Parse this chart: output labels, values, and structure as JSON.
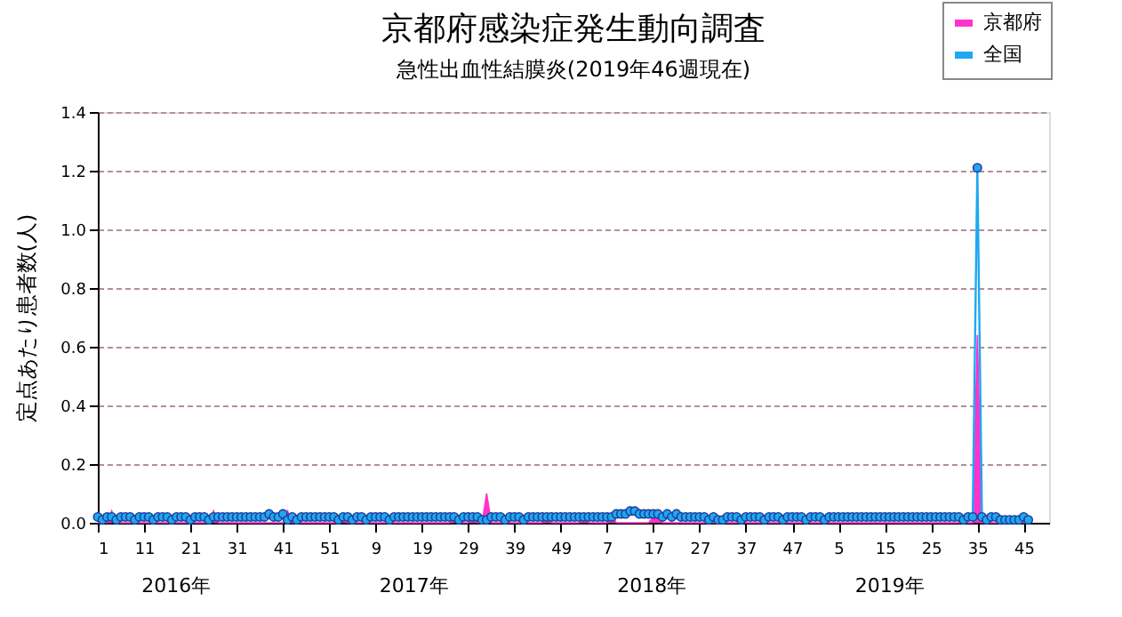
{
  "chart_data": {
    "type": "line",
    "title": "京都府感染症発生動向調査",
    "subtitle": "急性出血性結膜炎(2019年46週現在)",
    "ylabel": "定点あたり患者数(人)",
    "annotations": [
      "2016年",
      "2017年",
      "2018年",
      "2019年"
    ],
    "categories": [
      "1",
      null,
      null,
      null,
      null,
      null,
      null,
      null,
      null,
      null,
      "11",
      null,
      null,
      null,
      null,
      null,
      null,
      null,
      null,
      null,
      "21",
      null,
      null,
      null,
      null,
      null,
      null,
      null,
      null,
      null,
      "31",
      null,
      null,
      null,
      null,
      null,
      null,
      null,
      null,
      null,
      "41",
      null,
      null,
      null,
      null,
      null,
      null,
      null,
      null,
      null,
      "51",
      null,
      null,
      null,
      null,
      null,
      null,
      null,
      null,
      null,
      "9",
      null,
      null,
      null,
      null,
      null,
      null,
      null,
      null,
      null,
      "19",
      null,
      null,
      null,
      null,
      null,
      null,
      null,
      null,
      null,
      "29",
      null,
      null,
      null,
      null,
      null,
      null,
      null,
      null,
      null,
      "39",
      null,
      null,
      null,
      null,
      null,
      null,
      null,
      null,
      null,
      "49",
      null,
      null,
      null,
      null,
      null,
      null,
      null,
      null,
      null,
      "7",
      null,
      null,
      null,
      null,
      null,
      null,
      null,
      null,
      null,
      "17",
      null,
      null,
      null,
      null,
      null,
      null,
      null,
      null,
      null,
      "27",
      null,
      null,
      null,
      null,
      null,
      null,
      null,
      null,
      null,
      "37",
      null,
      null,
      null,
      null,
      null,
      null,
      null,
      null,
      null,
      "47",
      null,
      null,
      null,
      null,
      null,
      null,
      null,
      null,
      null,
      "5",
      null,
      null,
      null,
      null,
      null,
      null,
      null,
      null,
      null,
      "15",
      null,
      null,
      null,
      null,
      null,
      null,
      null,
      null,
      null,
      "25",
      null,
      null,
      null,
      null,
      null,
      null,
      null,
      null,
      null,
      "35",
      null,
      null,
      null,
      null,
      null,
      null,
      null,
      null,
      null,
      "45",
      null
    ],
    "series": [
      {
        "name": "京都府",
        "type": "area",
        "color": "#ff33cc",
        "values": [
          0,
          0,
          0,
          0.04,
          0,
          0,
          0,
          0,
          0,
          0,
          0,
          0,
          0,
          0,
          0,
          0,
          0,
          0,
          0,
          0,
          0,
          0,
          0,
          0,
          0,
          0.04,
          0,
          0,
          0,
          0,
          0,
          0,
          0,
          0,
          0,
          0,
          0,
          0,
          0,
          0,
          0,
          0.04,
          0,
          0,
          0,
          0,
          0,
          0,
          0,
          0,
          0,
          0,
          0,
          0.03,
          0,
          0,
          0,
          0,
          0,
          0,
          0,
          0,
          0,
          0,
          0,
          0,
          0,
          0,
          0,
          0,
          0,
          0,
          0,
          0,
          0,
          0,
          0,
          0.03,
          0,
          0,
          0,
          0.03,
          0,
          0,
          0.1,
          0,
          0,
          0,
          0,
          0,
          0,
          0,
          0,
          0,
          0,
          0,
          0,
          0.03,
          0,
          0,
          0,
          0,
          0,
          0,
          0,
          0.03,
          0,
          0,
          0,
          0,
          0,
          0.03,
          0,
          0,
          0,
          0,
          0,
          0,
          0,
          0,
          0.02,
          0.02,
          0,
          0,
          0,
          0,
          0,
          0,
          0,
          0,
          0,
          0,
          0,
          0,
          0,
          0,
          0,
          0,
          0,
          0,
          0,
          0,
          0,
          0,
          0,
          0,
          0,
          0,
          0,
          0,
          0,
          0,
          0,
          0,
          0,
          0,
          0,
          0,
          0,
          0,
          0,
          0,
          0,
          0,
          0,
          0,
          0,
          0,
          0,
          0,
          0,
          0,
          0,
          0,
          0,
          0,
          0,
          0,
          0,
          0,
          0,
          0,
          0,
          0,
          0,
          0,
          0,
          0,
          0,
          0,
          0.64,
          0,
          0,
          0,
          0,
          0,
          0,
          0,
          0,
          0,
          0,
          0
        ]
      },
      {
        "name": "全国",
        "marker": "circle",
        "color": "#1fa8f0",
        "values": [
          0.02,
          0.01,
          0.02,
          0.02,
          0.01,
          0.02,
          0.02,
          0.02,
          0.01,
          0.02,
          0.02,
          0.02,
          0.01,
          0.02,
          0.02,
          0.02,
          0.01,
          0.02,
          0.02,
          0.02,
          0.01,
          0.02,
          0.02,
          0.02,
          0.01,
          0.02,
          0.02,
          0.02,
          0.02,
          0.02,
          0.02,
          0.02,
          0.02,
          0.02,
          0.02,
          0.02,
          0.02,
          0.03,
          0.02,
          0.02,
          0.03,
          0.01,
          0.02,
          0.01,
          0.02,
          0.02,
          0.02,
          0.02,
          0.02,
          0.02,
          0.02,
          0.02,
          0.01,
          0.02,
          0.02,
          0.01,
          0.02,
          0.02,
          0.01,
          0.02,
          0.02,
          0.02,
          0.02,
          0.01,
          0.02,
          0.02,
          0.02,
          0.02,
          0.02,
          0.02,
          0.02,
          0.02,
          0.02,
          0.02,
          0.02,
          0.02,
          0.02,
          0.02,
          0.01,
          0.02,
          0.02,
          0.02,
          0.02,
          0.01,
          0.01,
          0.02,
          0.02,
          0.02,
          0.01,
          0.02,
          0.02,
          0.02,
          0.01,
          0.02,
          0.02,
          0.02,
          0.02,
          0.02,
          0.02,
          0.02,
          0.02,
          0.02,
          0.02,
          0.02,
          0.02,
          0.02,
          0.02,
          0.02,
          0.02,
          0.02,
          0.02,
          0.02,
          0.03,
          0.03,
          0.03,
          0.04,
          0.04,
          0.03,
          0.03,
          0.03,
          0.03,
          0.03,
          0.02,
          0.03,
          0.02,
          0.03,
          0.02,
          0.02,
          0.02,
          0.02,
          0.02,
          0.02,
          0.01,
          0.02,
          0.01,
          0.01,
          0.02,
          0.02,
          0.02,
          0.01,
          0.02,
          0.02,
          0.02,
          0.02,
          0.01,
          0.02,
          0.02,
          0.02,
          0.01,
          0.02,
          0.02,
          0.02,
          0.02,
          0.01,
          0.02,
          0.02,
          0.02,
          0.01,
          0.02,
          0.02,
          0.02,
          0.02,
          0.02,
          0.02,
          0.02,
          0.02,
          0.02,
          0.02,
          0.02,
          0.02,
          0.02,
          0.02,
          0.02,
          0.02,
          0.02,
          0.02,
          0.02,
          0.02,
          0.02,
          0.02,
          0.02,
          0.02,
          0.02,
          0.02,
          0.02,
          0.02,
          0.02,
          0.01,
          0.02,
          0.02,
          1.21,
          0.02,
          0.01,
          0.02,
          0.02,
          0.01,
          0.01,
          0.01,
          0.01,
          0.01,
          0.02,
          0.01
        ]
      }
    ],
    "ylim": [
      0,
      1.4
    ],
    "yticks": [
      {
        "value": 0,
        "label": "0.0"
      },
      {
        "value": 0.2,
        "label": "0.2"
      },
      {
        "value": 0.4,
        "label": "0.4"
      },
      {
        "value": 0.6,
        "label": "0.6"
      },
      {
        "value": 0.8,
        "label": "0.8"
      },
      {
        "value": 1.0,
        "label": "1.0"
      },
      {
        "value": 1.2,
        "label": "1.2"
      },
      {
        "value": 1.4,
        "label": "1.4"
      }
    ],
    "grid": "y",
    "legend": "top right"
  }
}
